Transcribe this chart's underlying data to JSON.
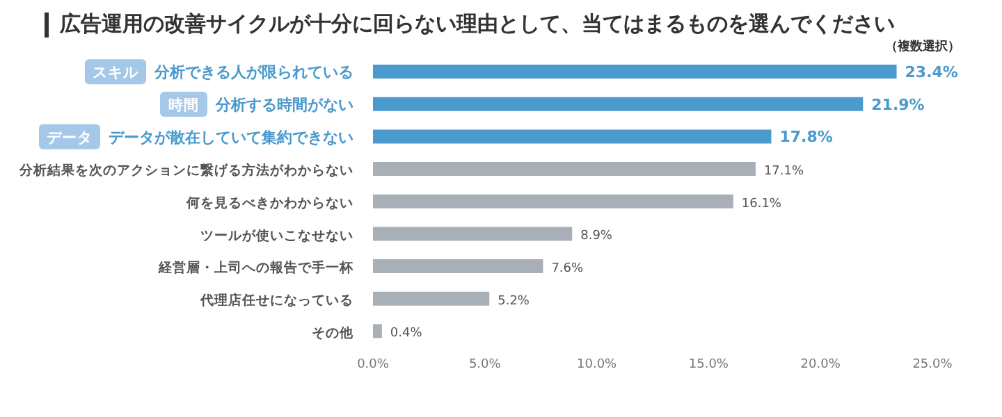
{
  "chart_data": {
    "type": "bar",
    "orientation": "horizontal",
    "title": "広告運用の改善サイクルが十分に回らない理由として、当てはまるものを選んでください",
    "subtitle": "（複数選択）",
    "categories": [
      "分析できる人が限られている",
      "分析する時間がない",
      "データが散在していて集約できない",
      "分析結果を次のアクションに繋げる方法がわからない",
      "何を見るべきかわからない",
      "ツールが使いこなせない",
      "経営層・上司への報告で手一杯",
      "代理店任せになっている",
      "その他"
    ],
    "values": [
      23.4,
      21.9,
      17.8,
      17.1,
      16.1,
      8.9,
      7.6,
      5.2,
      0.4
    ],
    "value_labels": [
      "23.4%",
      "21.9%",
      "17.8%",
      "17.1%",
      "16.1%",
      "8.9%",
      "7.6%",
      "5.2%",
      "0.4%"
    ],
    "colors": [
      "#4a9acd",
      "#4a9acd",
      "#4a9acd",
      "#a9afb6",
      "#a9afb6",
      "#a9afb6",
      "#a9afb6",
      "#a9afb6",
      "#a9afb6"
    ],
    "annotations": [
      "スキル",
      "時間",
      "データ"
    ],
    "xlim": [
      0,
      25
    ],
    "xticks": [
      {
        "value": 0,
        "label": "0.0%"
      },
      {
        "value": 5,
        "label": "5.0%"
      },
      {
        "value": 10,
        "label": "10.0%"
      },
      {
        "value": 15,
        "label": "15.0%"
      },
      {
        "value": 20,
        "label": "20.0%"
      },
      {
        "value": 25,
        "label": "25.0%"
      }
    ],
    "grid": false,
    "legend": false
  }
}
